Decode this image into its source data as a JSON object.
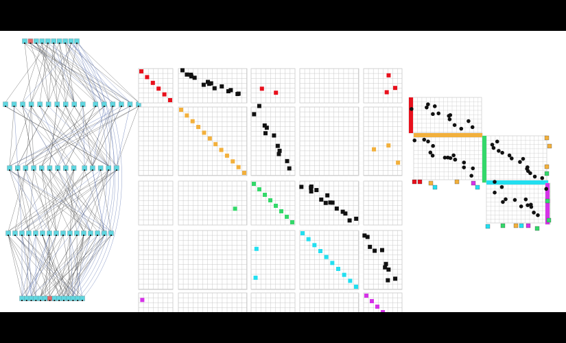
{
  "colors": {
    "letterbox": "#000000",
    "background": "#ffffff",
    "grid": "#c8c8c8",
    "edge_dark": "#555555",
    "edge_blue": "#5870b0",
    "node_fill": "#5fd6e0",
    "node_highlight": "#e06a6a",
    "red": "#e8101c",
    "black": "#111111",
    "orange": "#f2b03c",
    "green": "#34d86a",
    "cyan": "#22dff0",
    "magenta": "#d632e8"
  },
  "graph": {
    "layers": [
      {
        "count": 10,
        "highlight": [
          1
        ]
      },
      {
        "count": 16,
        "highlight": []
      },
      {
        "count": 14,
        "highlight": []
      },
      {
        "count": 16,
        "highlight": []
      },
      {
        "count": 14,
        "highlight": [
          6
        ]
      }
    ]
  },
  "matrix": {
    "groups": [
      {
        "color": "red",
        "size": 6
      },
      {
        "color": "orange",
        "size": 10
      },
      {
        "color": "green",
        "size": 7
      },
      {
        "color": "cyan",
        "size": 10
      },
      {
        "color": "magenta",
        "size": 7
      }
    ],
    "black_band_group": 0
  },
  "inset": {
    "groups": [
      {
        "color": "red"
      },
      {
        "color": "orange"
      },
      {
        "color": "green"
      },
      {
        "color": "cyan"
      },
      {
        "color": "magenta"
      }
    ]
  }
}
